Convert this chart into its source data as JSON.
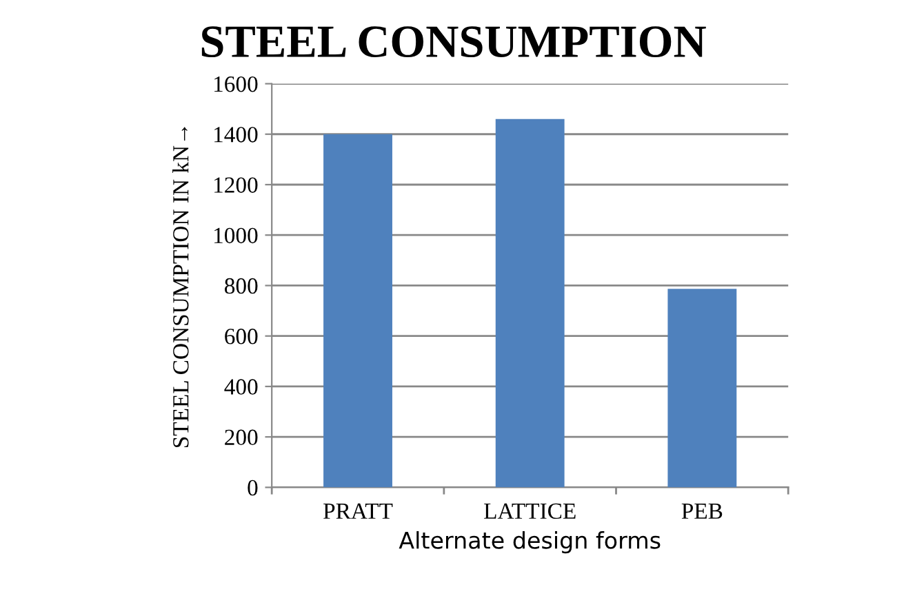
{
  "chart_data": {
    "type": "bar",
    "title": "STEEL CONSUMPTION",
    "xlabel": "Alternate design forms",
    "ylabel": "STEEL CONSUMPTION IN kN→",
    "categories": [
      "PRATT",
      "LATTICE",
      "PEB"
    ],
    "values": [
      1400,
      1460,
      787
    ],
    "color": "#4f81bd",
    "ylim": [
      0,
      1600
    ],
    "yticks": [
      0,
      200,
      400,
      600,
      800,
      1000,
      1200,
      1400,
      1600
    ],
    "grid": "y"
  }
}
